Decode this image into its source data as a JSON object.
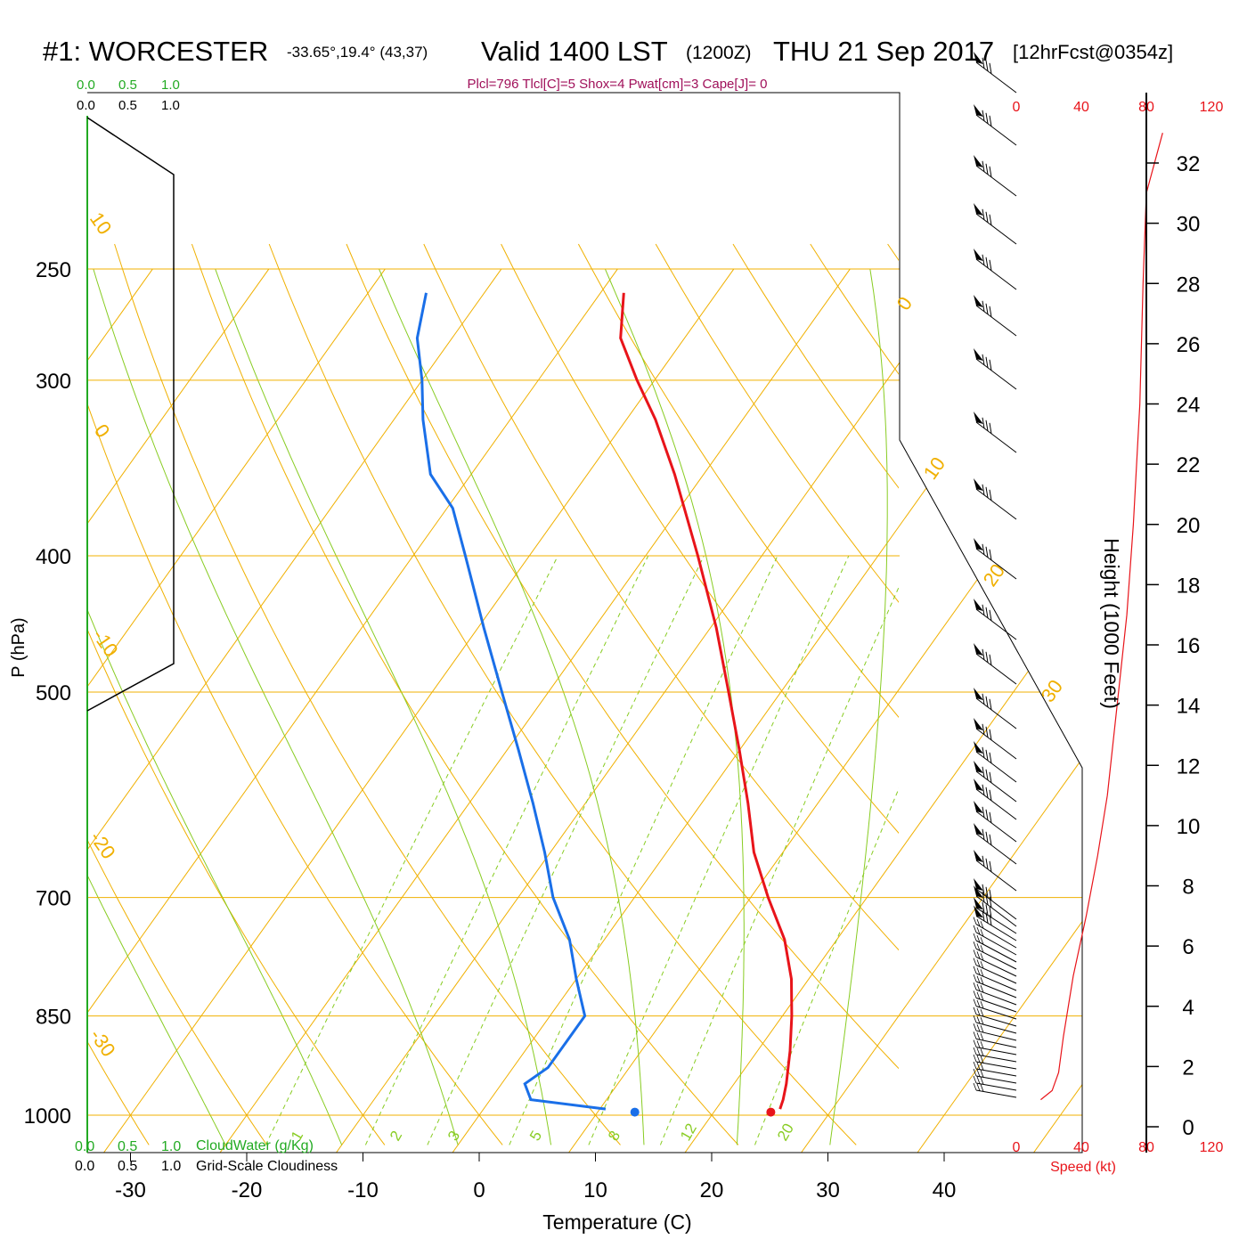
{
  "header": {
    "station": "#1: WORCESTER",
    "coords": "-33.65°,19.4° (43,37)",
    "valid": "Valid 1400 LST",
    "zulu": "(1200Z)",
    "date": "THU 21 Sep 2017",
    "forecast": "[12hrFcst@0354z]",
    "indices": "Plcl=796 Tlcl[C]=5 Shox=4 Pwat[cm]=3 Cape[J]= 0"
  },
  "cloud_scale": {
    "ticks": [
      "0.0",
      "0.5",
      "1.0"
    ],
    "cloudwater_label": "CloudWater (g/Kg)",
    "cloudiness_label": "Grid-Scale Cloudiness"
  },
  "colors": {
    "temperature": "#e8141a",
    "dewpoint": "#1a6fe8",
    "isotherm": "#f0b000",
    "mixing": "#88cc22",
    "cloudwater": "#22aa22",
    "index": "#a0105a",
    "speed": "#e8141a"
  },
  "chart_data": {
    "type": "line",
    "title": "#1: WORCESTER -33.65°,19.4° (43,37) Valid 1400 LST (1200Z) THU 21 Sep 2017 [12hrFcst@0354z]",
    "xlabel": "Temperature (C)",
    "ylabel": "P (hPa)",
    "y2label": "Height (1000 Feet)",
    "x_ticks": [
      "-30",
      "-20",
      "-10",
      "0",
      "10",
      "20",
      "30",
      "40"
    ],
    "p_ticks": [
      "250",
      "300",
      "400",
      "500",
      "700",
      "850",
      "1000"
    ],
    "height_ticks": [
      "0",
      "2",
      "4",
      "6",
      "8",
      "10",
      "12",
      "14",
      "16",
      "18",
      "20",
      "22",
      "24",
      "26",
      "28",
      "30",
      "32"
    ],
    "isotherm_labels": [
      "10",
      "0",
      "-10",
      "-20",
      "-30",
      "0",
      "10",
      "20",
      "30"
    ],
    "mixing_labels": [
      "1",
      "2",
      "3",
      "5",
      "8",
      "12",
      "20"
    ],
    "speed_axis": {
      "label": "Speed (kt)",
      "ticks": [
        "0",
        "40",
        "80",
        "120"
      ]
    },
    "series": [
      {
        "name": "Temperature",
        "points": [
          {
            "p": 990,
            "t": 25.5
          },
          {
            "p": 975,
            "t": 25.2
          },
          {
            "p": 950,
            "t": 24.5
          },
          {
            "p": 900,
            "t": 22.8
          },
          {
            "p": 850,
            "t": 20.8
          },
          {
            "p": 800,
            "t": 18.5
          },
          {
            "p": 750,
            "t": 15.5
          },
          {
            "p": 700,
            "t": 11.5
          },
          {
            "p": 650,
            "t": 7.5
          },
          {
            "p": 600,
            "t": 4.0
          },
          {
            "p": 550,
            "t": 0.0
          },
          {
            "p": 500,
            "t": -4.5
          },
          {
            "p": 450,
            "t": -9.5
          },
          {
            "p": 400,
            "t": -15.5
          },
          {
            "p": 350,
            "t": -22.5
          },
          {
            "p": 320,
            "t": -27.5
          },
          {
            "p": 300,
            "t": -31.5
          },
          {
            "p": 280,
            "t": -35.5
          },
          {
            "p": 260,
            "t": -38.0
          }
        ]
      },
      {
        "name": "Dewpoint",
        "points": [
          {
            "p": 990,
            "t": 10.5
          },
          {
            "p": 975,
            "t": 3.5
          },
          {
            "p": 950,
            "t": 2.0
          },
          {
            "p": 925,
            "t": 3.0
          },
          {
            "p": 850,
            "t": 3.0
          },
          {
            "p": 800,
            "t": 0.0
          },
          {
            "p": 750,
            "t": -3.0
          },
          {
            "p": 700,
            "t": -7.0
          },
          {
            "p": 650,
            "t": -10.5
          },
          {
            "p": 600,
            "t": -14.5
          },
          {
            "p": 550,
            "t": -19.0
          },
          {
            "p": 500,
            "t": -24.0
          },
          {
            "p": 450,
            "t": -29.5
          },
          {
            "p": 400,
            "t": -35.5
          },
          {
            "p": 370,
            "t": -39.5
          },
          {
            "p": 350,
            "t": -43.5
          },
          {
            "p": 320,
            "t": -47.5
          },
          {
            "p": 300,
            "t": -50.0
          },
          {
            "p": 280,
            "t": -53.0
          },
          {
            "p": 260,
            "t": -55.0
          }
        ]
      }
    ],
    "surface_temperature": 24.9,
    "surface_dewpoint": 13.2,
    "wind_speed_profile": [
      {
        "h": 0.9,
        "v": 15
      },
      {
        "h": 1.2,
        "v": 22
      },
      {
        "h": 1.8,
        "v": 26
      },
      {
        "h": 3,
        "v": 29
      },
      {
        "h": 5,
        "v": 35
      },
      {
        "h": 7,
        "v": 43
      },
      {
        "h": 9,
        "v": 50
      },
      {
        "h": 11,
        "v": 56
      },
      {
        "h": 14,
        "v": 62
      },
      {
        "h": 17,
        "v": 68
      },
      {
        "h": 20,
        "v": 72
      },
      {
        "h": 24,
        "v": 76
      },
      {
        "h": 28,
        "v": 78
      },
      {
        "h": 31,
        "v": 80
      },
      {
        "h": 33,
        "v": 90
      }
    ]
  }
}
